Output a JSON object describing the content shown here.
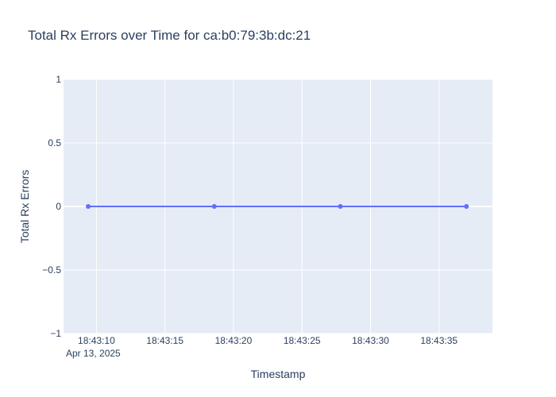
{
  "chart_data": {
    "type": "line",
    "title": "Total Rx Errors over Time for ca:b0:79:3b:dc:21",
    "xlabel": "Timestamp",
    "ylabel": "Total Rx Errors",
    "x_seconds": [
      9.4,
      18.6,
      27.8,
      37.0
    ],
    "x_range_seconds": [
      7.6,
      38.9
    ],
    "y": [
      0,
      0,
      0,
      0
    ],
    "ylim": [
      -1,
      1
    ],
    "y_ticks": [
      -1,
      -0.5,
      0,
      0.5,
      1
    ],
    "y_tick_labels": [
      "−1",
      "−0.5",
      "0",
      "0.5",
      "1"
    ],
    "x_ticks_seconds": [
      10,
      15,
      20,
      25,
      30,
      35
    ],
    "x_tick_labels": [
      "18:43:10",
      "18:43:15",
      "18:43:20",
      "18:43:25",
      "18:43:30",
      "18:43:35"
    ],
    "x_date_label": "Apr 13, 2025",
    "grid": true,
    "colors": {
      "line": "#636efa",
      "plot_background": "#e5ecf6",
      "grid": "#ffffff",
      "text": "#2a3f5f"
    }
  }
}
